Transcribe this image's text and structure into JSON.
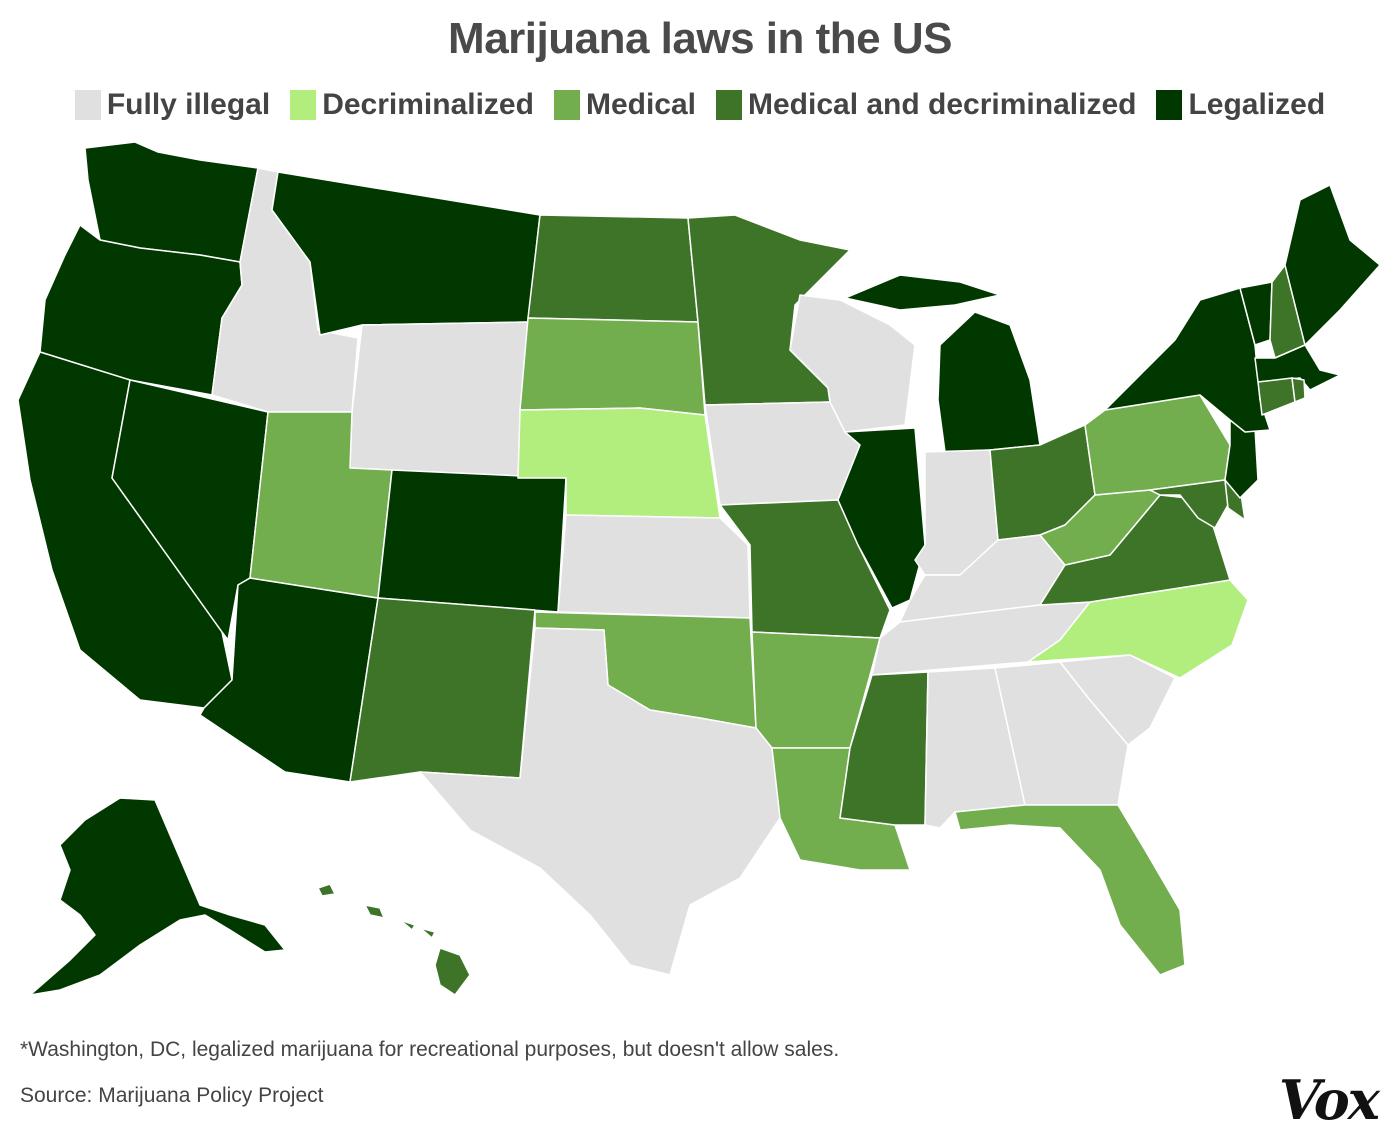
{
  "title": "Marijuana laws in the US",
  "legend": [
    {
      "label": "Fully illegal",
      "color": "#e0e0e0"
    },
    {
      "label": "Decriminalized",
      "color": "#b2ee7e"
    },
    {
      "label": "Medical",
      "color": "#72ad4e"
    },
    {
      "label": "Medical and decriminalized",
      "color": "#3d7428"
    },
    {
      "label": "Legalized",
      "color": "#003800"
    }
  ],
  "states": {
    "Washington": "Legalized",
    "Oregon": "Legalized",
    "California": "Legalized",
    "Nevada": "Legalized",
    "Arizona": "Legalized",
    "Montana": "Legalized",
    "Colorado": "Legalized",
    "Illinois": "Legalized",
    "Michigan": "Legalized",
    "New York": "Legalized",
    "Vermont": "Legalized",
    "Maine": "Legalized",
    "Massachusetts": "Legalized",
    "New Jersey": "Legalized",
    "Alaska": "Legalized",
    "Idaho": "Fully illegal",
    "Wyoming": "Fully illegal",
    "Kansas": "Fully illegal",
    "Texas": "Fully illegal",
    "Iowa": "Fully illegal",
    "Wisconsin": "Fully illegal",
    "Indiana": "Fully illegal",
    "Kentucky": "Fully illegal",
    "Tennessee": "Fully illegal",
    "Alabama": "Fully illegal",
    "Georgia": "Fully illegal",
    "South Carolina": "Fully illegal",
    "Nebraska": "Decriminalized",
    "North Carolina": "Decriminalized",
    "Utah": "Medical",
    "South Dakota": "Medical",
    "Oklahoma": "Medical",
    "Arkansas": "Medical",
    "Louisiana": "Medical",
    "Florida": "Medical",
    "Pennsylvania": "Medical",
    "West Virginia": "Medical",
    "North Dakota": "Medical and decriminalized",
    "Minnesota": "Medical and decriminalized",
    "New Mexico": "Medical and decriminalized",
    "Missouri": "Medical and decriminalized",
    "Mississippi": "Medical and decriminalized",
    "Ohio": "Medical and decriminalized",
    "Virginia": "Medical and decriminalized",
    "Maryland": "Medical and decriminalized",
    "Delaware": "Medical and decriminalized",
    "New Hampshire": "Medical and decriminalized",
    "Connecticut": "Medical and decriminalized",
    "Rhode Island": "Medical and decriminalized",
    "Hawaii": "Medical and decriminalized"
  },
  "footnote": "*Washington, DC, legalized marijuana for recreational purposes, but doesn't allow sales.",
  "source": "Source: Marijuana Policy Project",
  "logo": "Vox"
}
